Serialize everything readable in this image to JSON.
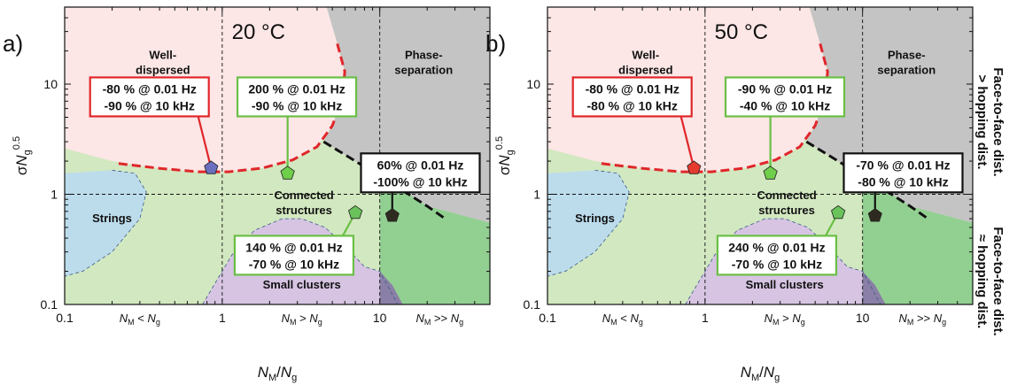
{
  "chart_data": [
    {
      "type": "phase-diagram",
      "panel_label": "a)",
      "temperature": "20 °C",
      "xlabel_main": "N",
      "xlabel_sub1": "M",
      "xlabel_sep": "/",
      "xlabel_main2": "N",
      "xlabel_sub2": "g",
      "ylabel_main": "σN",
      "ylabel_sub": "g",
      "ylabel_sup": "0.5",
      "xscale": "log",
      "yscale": "log",
      "xlim": [
        0.1,
        50
      ],
      "ylim": [
        0.1,
        50
      ],
      "x_ticks": [
        {
          "v": 0.1,
          "label": "0.1"
        },
        {
          "v": 1,
          "label": "1"
        },
        {
          "v": 10,
          "label": "10"
        }
      ],
      "y_ticks": [
        {
          "v": 0.1,
          "label": "0.1"
        },
        {
          "v": 1,
          "label": "1"
        },
        {
          "v": 10,
          "label": "10"
        }
      ],
      "regimes": [
        {
          "label_a": "N",
          "sub_a": "M",
          "rel": " < ",
          "label_b": "N",
          "sub_b": "g",
          "x": 0.3
        },
        {
          "label_a": "N",
          "sub_a": "M",
          "rel": " > ",
          "label_b": "N",
          "sub_b": "g",
          "x": 3.2
        },
        {
          "label_a": "N",
          "sub_a": "M",
          "rel": " >> ",
          "label_b": "N",
          "sub_b": "g",
          "x": 24
        }
      ],
      "region_labels": [
        {
          "lines": [
            "Well-",
            "dispersed"
          ],
          "x": 0.42,
          "y": 17
        },
        {
          "lines": [
            "Phase-",
            "separation"
          ],
          "x": 19,
          "y": 17
        },
        {
          "lines": [
            "Connected",
            "structures"
          ],
          "x": 3.3,
          "y": 0.9
        },
        {
          "lines": [
            "Strings"
          ],
          "x": 0.2,
          "y": 0.56
        },
        {
          "lines": [
            "Small clusters"
          ],
          "x": 3.2,
          "y": 0.14
        }
      ],
      "points": [
        {
          "name": "well-dispersed-point",
          "x": 0.85,
          "y": 1.73,
          "color": "#6a6fbf"
        },
        {
          "name": "connected-point",
          "x": 2.6,
          "y": 1.55,
          "color": "#6fce4a"
        },
        {
          "name": "small-clusters-point",
          "x": 7.0,
          "y": 0.68,
          "color": "#69c35a"
        },
        {
          "name": "phase-separation-point",
          "x": 12.0,
          "y": 0.64,
          "color": "#2e2a1f"
        }
      ],
      "annotations": [
        {
          "name": "well-dispersed-callout",
          "border": "#e0262a",
          "lines": [
            "-80 % @ 0.01 Hz",
            "-90 % @ 10 kHz"
          ],
          "box_x": 0.145,
          "box_y": 11.5,
          "point": 0
        },
        {
          "name": "connected-callout",
          "border": "#6abf45",
          "lines": [
            "200 % @ 0.01 Hz",
            "-90 % @ 10 kHz"
          ],
          "box_x": 1.25,
          "box_y": 11.5,
          "point": 1
        },
        {
          "name": "phase-separation-callout",
          "border": "#111111",
          "lines": [
            "60% @ 0.01 Hz",
            "-100% @ 10 kHz"
          ],
          "box_x": 7.6,
          "box_y": 2.35,
          "point": 3
        },
        {
          "name": "small-clusters-callout",
          "border": "#6abf45",
          "lines": [
            "140 % @ 0.01 Hz",
            "-70 % @ 10 kHz"
          ],
          "box_x": 1.2,
          "box_y": 0.42,
          "point": 2
        }
      ]
    },
    {
      "type": "phase-diagram",
      "panel_label": "b)",
      "temperature": "50 °C",
      "xlabel_main": "N",
      "xlabel_sub1": "M",
      "xlabel_sep": "/",
      "xlabel_main2": "N",
      "xlabel_sub2": "g",
      "ylabel_main": "σN",
      "ylabel_sub": "g",
      "ylabel_sup": "0.5",
      "xscale": "log",
      "yscale": "log",
      "xlim": [
        0.1,
        50
      ],
      "ylim": [
        0.1,
        50
      ],
      "x_ticks": [
        {
          "v": 0.1,
          "label": "0.1"
        },
        {
          "v": 1,
          "label": "1"
        },
        {
          "v": 10,
          "label": "10"
        }
      ],
      "y_ticks": [
        {
          "v": 0.1,
          "label": "0.1"
        },
        {
          "v": 1,
          "label": "1"
        },
        {
          "v": 10,
          "label": "10"
        }
      ],
      "regimes": [
        {
          "label_a": "N",
          "sub_a": "M",
          "rel": " < ",
          "label_b": "N",
          "sub_b": "g",
          "x": 0.3
        },
        {
          "label_a": "N",
          "sub_a": "M",
          "rel": " > ",
          "label_b": "N",
          "sub_b": "g",
          "x": 3.2
        },
        {
          "label_a": "N",
          "sub_a": "M",
          "rel": " >> ",
          "label_b": "N",
          "sub_b": "g",
          "x": 24
        }
      ],
      "region_labels": [
        {
          "lines": [
            "Well-",
            "dispersed"
          ],
          "x": 0.42,
          "y": 17
        },
        {
          "lines": [
            "Phase-",
            "separation"
          ],
          "x": 19,
          "y": 17
        },
        {
          "lines": [
            "Connected",
            "structures"
          ],
          "x": 3.3,
          "y": 0.9
        },
        {
          "lines": [
            "Strings"
          ],
          "x": 0.2,
          "y": 0.56
        },
        {
          "lines": [
            "Small clusters"
          ],
          "x": 3.2,
          "y": 0.14
        }
      ],
      "points": [
        {
          "name": "well-dispersed-point",
          "x": 0.85,
          "y": 1.73,
          "color": "#e63a2e"
        },
        {
          "name": "connected-point",
          "x": 2.6,
          "y": 1.55,
          "color": "#6fce4a"
        },
        {
          "name": "small-clusters-point",
          "x": 7.0,
          "y": 0.68,
          "color": "#69c35a"
        },
        {
          "name": "phase-separation-point",
          "x": 12.0,
          "y": 0.64,
          "color": "#2e2a1f"
        }
      ],
      "annotations": [
        {
          "name": "well-dispersed-callout",
          "border": "#e0262a",
          "lines": [
            "-80 % @ 0.01 Hz",
            "-80 % @ 10 kHz"
          ],
          "box_x": 0.145,
          "box_y": 11.5,
          "point": 0
        },
        {
          "name": "connected-callout",
          "border": "#6abf45",
          "lines": [
            "-90 % @ 0.01 Hz",
            "-40 % @ 10 kHz"
          ],
          "box_x": 1.35,
          "box_y": 11.5,
          "point": 1
        },
        {
          "name": "phase-separation-callout",
          "border": "#111111",
          "lines": [
            "-70 % @ 0.01 Hz",
            "-80 % @ 10 kHz"
          ],
          "box_x": 7.6,
          "box_y": 2.35,
          "point": 3
        },
        {
          "name": "small-clusters-callout",
          "border": "#6abf45",
          "lines": [
            "240 % @ 0.01 Hz",
            "-70 % @ 10 kHz"
          ],
          "box_x": 1.2,
          "box_y": 0.42,
          "point": 2
        }
      ]
    }
  ],
  "right_labels": {
    "upper_line1": "Face-to-face dist.",
    "upper_line2": "> hopping dist.",
    "lower_line1": "Face-to-face dist.",
    "lower_line2": "≈ hopping dist."
  },
  "colors": {
    "well_dispersed": "#fce6e6",
    "phase_separation": "#c4c4c4",
    "connected": "#d2e8c0",
    "strings": "#bcdcec",
    "small_clusters": "#d6c4e2",
    "dense": "#92d092",
    "red_boundary": "#e0262a",
    "black_boundary": "#111111"
  }
}
